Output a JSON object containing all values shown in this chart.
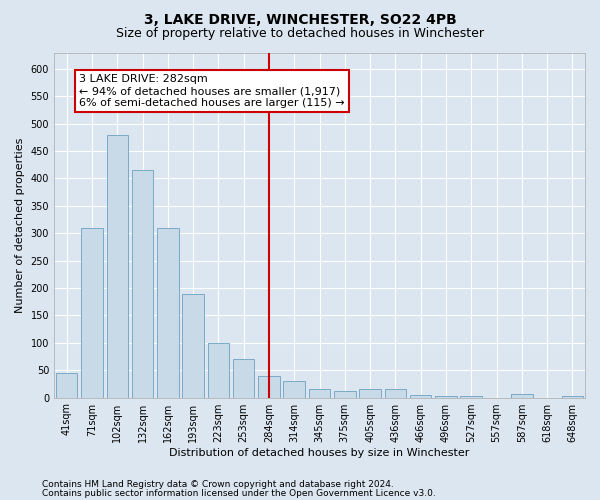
{
  "title": "3, LAKE DRIVE, WINCHESTER, SO22 4PB",
  "subtitle": "Size of property relative to detached houses in Winchester",
  "xlabel": "Distribution of detached houses by size in Winchester",
  "ylabel": "Number of detached properties",
  "categories": [
    "41sqm",
    "71sqm",
    "102sqm",
    "132sqm",
    "162sqm",
    "193sqm",
    "223sqm",
    "253sqm",
    "284sqm",
    "314sqm",
    "345sqm",
    "375sqm",
    "405sqm",
    "436sqm",
    "466sqm",
    "496sqm",
    "527sqm",
    "557sqm",
    "587sqm",
    "618sqm",
    "648sqm"
  ],
  "values": [
    45,
    310,
    480,
    415,
    310,
    190,
    100,
    70,
    40,
    30,
    15,
    12,
    15,
    15,
    5,
    3,
    2,
    0,
    6,
    0,
    2
  ],
  "bar_color": "#c8d9e8",
  "bar_edge_color": "#7aaac8",
  "vline_x_index": 8,
  "vline_color": "#cc0000",
  "annotation_text": "3 LAKE DRIVE: 282sqm\n← 94% of detached houses are smaller (1,917)\n6% of semi-detached houses are larger (115) →",
  "annotation_box_facecolor": "#ffffff",
  "annotation_box_edgecolor": "#cc0000",
  "ylim": [
    0,
    630
  ],
  "yticks": [
    0,
    50,
    100,
    150,
    200,
    250,
    300,
    350,
    400,
    450,
    500,
    550,
    600
  ],
  "footer_line1": "Contains HM Land Registry data © Crown copyright and database right 2024.",
  "footer_line2": "Contains public sector information licensed under the Open Government Licence v3.0.",
  "background_color": "#dce6f0",
  "plot_background_color": "#dce6f0",
  "grid_color": "#ffffff",
  "title_fontsize": 10,
  "subtitle_fontsize": 9,
  "axis_label_fontsize": 8,
  "tick_fontsize": 7,
  "annotation_fontsize": 8,
  "footer_fontsize": 6.5
}
